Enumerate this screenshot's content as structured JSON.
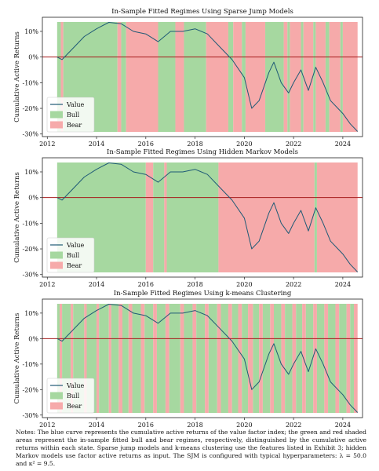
{
  "chart_data": [
    {
      "type": "line",
      "title": "In-Sample Fitted Regimes Using Sparse Jump Models",
      "ylabel": "Cumulative Active Returns",
      "xlim": [
        2011.8,
        2024.8
      ],
      "ylim": [
        -31,
        15.5
      ],
      "xticks": [
        2012,
        2014,
        2016,
        2018,
        2020,
        2022,
        2024
      ],
      "yticks": [
        10,
        0,
        -10,
        -20,
        -30
      ],
      "ytick_labels": [
        "10%",
        "0%",
        "-10%",
        "-20%",
        "-30%"
      ],
      "legend": {
        "position": "lower-left",
        "entries": [
          "Value",
          "Bull",
          "Bear"
        ]
      },
      "series": [
        {
          "name": "Value",
          "x": [
            2012.4,
            2012.6,
            2013.0,
            2013.5,
            2014.0,
            2014.5,
            2015.0,
            2015.5,
            2016.0,
            2016.5,
            2017.0,
            2017.5,
            2018.0,
            2018.5,
            2019.0,
            2019.5,
            2020.0,
            2020.3,
            2020.6,
            2021.0,
            2021.2,
            2021.5,
            2021.8,
            2022.0,
            2022.3,
            2022.6,
            2022.9,
            2023.2,
            2023.5,
            2023.8,
            2024.0,
            2024.3,
            2024.6
          ],
          "y": [
            0,
            -1,
            3,
            8,
            11,
            13.5,
            13,
            10,
            9,
            6,
            10,
            10,
            11,
            9,
            4,
            -1,
            -8,
            -20,
            -17,
            -6,
            -2,
            -10,
            -14,
            -10,
            -5,
            -13,
            -4,
            -10,
            -17,
            -20,
            -22,
            -26,
            -29
          ]
        }
      ],
      "regimes": [
        {
          "state": "Bull",
          "start": 2012.4,
          "end": 2012.55
        },
        {
          "state": "Bear",
          "start": 2012.55,
          "end": 2012.65
        },
        {
          "state": "Bull",
          "start": 2012.65,
          "end": 2014.85
        },
        {
          "state": "Bear",
          "start": 2014.85,
          "end": 2015.0
        },
        {
          "state": "Bull",
          "start": 2015.0,
          "end": 2015.2
        },
        {
          "state": "Bear",
          "start": 2015.2,
          "end": 2016.5
        },
        {
          "state": "Bull",
          "start": 2016.5,
          "end": 2017.2
        },
        {
          "state": "Bear",
          "start": 2017.2,
          "end": 2017.55
        },
        {
          "state": "Bull",
          "start": 2017.55,
          "end": 2018.45
        },
        {
          "state": "Bear",
          "start": 2018.45,
          "end": 2019.35
        },
        {
          "state": "Bull",
          "start": 2019.35,
          "end": 2019.55
        },
        {
          "state": "Bear",
          "start": 2019.55,
          "end": 2019.9
        },
        {
          "state": "Bull",
          "start": 2019.9,
          "end": 2020.05
        },
        {
          "state": "Bear",
          "start": 2020.05,
          "end": 2020.85
        },
        {
          "state": "Bull",
          "start": 2020.85,
          "end": 2021.6
        },
        {
          "state": "Bear",
          "start": 2021.6,
          "end": 2021.75
        },
        {
          "state": "Bull",
          "start": 2021.75,
          "end": 2021.85
        },
        {
          "state": "Bear",
          "start": 2021.85,
          "end": 2022.3
        },
        {
          "state": "Bull",
          "start": 2022.3,
          "end": 2022.4
        },
        {
          "state": "Bear",
          "start": 2022.4,
          "end": 2022.8
        },
        {
          "state": "Bull",
          "start": 2022.8,
          "end": 2022.9
        },
        {
          "state": "Bear",
          "start": 2022.9,
          "end": 2023.3
        },
        {
          "state": "Bull",
          "start": 2023.3,
          "end": 2023.45
        },
        {
          "state": "Bear",
          "start": 2023.45,
          "end": 2023.9
        },
        {
          "state": "Bull",
          "start": 2023.9,
          "end": 2024.0
        },
        {
          "state": "Bear",
          "start": 2024.0,
          "end": 2024.6
        }
      ]
    },
    {
      "type": "line",
      "title": "In-Sample Fitted Regimes Using Hidden Markov Models",
      "ylabel": "Cumulative Active Returns",
      "xlim": [
        2011.8,
        2024.8
      ],
      "ylim": [
        -31,
        15.5
      ],
      "xticks": [
        2012,
        2014,
        2016,
        2018,
        2020,
        2022,
        2024
      ],
      "yticks": [
        10,
        0,
        -10,
        -20,
        -30
      ],
      "ytick_labels": [
        "10%",
        "0%",
        "-10%",
        "-20%",
        "-30%"
      ],
      "legend": {
        "position": "lower-left",
        "entries": [
          "Value",
          "Bull",
          "Bear"
        ]
      },
      "series": [
        {
          "name": "Value",
          "x": [
            2012.4,
            2012.6,
            2013.0,
            2013.5,
            2014.0,
            2014.5,
            2015.0,
            2015.5,
            2016.0,
            2016.5,
            2017.0,
            2017.5,
            2018.0,
            2018.5,
            2019.0,
            2019.5,
            2020.0,
            2020.3,
            2020.6,
            2021.0,
            2021.2,
            2021.5,
            2021.8,
            2022.0,
            2022.3,
            2022.6,
            2022.9,
            2023.2,
            2023.5,
            2023.8,
            2024.0,
            2024.3,
            2024.6
          ],
          "y": [
            0,
            -1,
            3,
            8,
            11,
            13.5,
            13,
            10,
            9,
            6,
            10,
            10,
            11,
            9,
            4,
            -1,
            -8,
            -20,
            -17,
            -6,
            -2,
            -10,
            -14,
            -10,
            -5,
            -13,
            -4,
            -10,
            -17,
            -20,
            -22,
            -26,
            -29
          ]
        }
      ],
      "regimes": [
        {
          "state": "Bull",
          "start": 2012.4,
          "end": 2016.0
        },
        {
          "state": "Bear",
          "start": 2016.0,
          "end": 2016.3
        },
        {
          "state": "Bull",
          "start": 2016.3,
          "end": 2016.75
        },
        {
          "state": "Bear",
          "start": 2016.75,
          "end": 2016.85
        },
        {
          "state": "Bull",
          "start": 2016.85,
          "end": 2018.95
        },
        {
          "state": "Bear",
          "start": 2018.95,
          "end": 2022.85
        },
        {
          "state": "Bull",
          "start": 2022.85,
          "end": 2022.95
        },
        {
          "state": "Bear",
          "start": 2022.95,
          "end": 2024.6
        }
      ]
    },
    {
      "type": "line",
      "title": "In-Sample Fitted Regimes Using k-means Clustering",
      "ylabel": "Cumulative Active Returns",
      "xlim": [
        2011.8,
        2024.8
      ],
      "ylim": [
        -31,
        15.5
      ],
      "xticks": [
        2012,
        2014,
        2016,
        2018,
        2020,
        2022,
        2024
      ],
      "yticks": [
        10,
        0,
        -10,
        -20,
        -30
      ],
      "ytick_labels": [
        "10%",
        "0%",
        "-10%",
        "-20%",
        "-30%"
      ],
      "legend": {
        "position": "lower-left",
        "entries": [
          "Value",
          "Bull",
          "Bear"
        ]
      },
      "series": [
        {
          "name": "Value",
          "x": [
            2012.4,
            2012.6,
            2013.0,
            2013.5,
            2014.0,
            2014.5,
            2015.0,
            2015.5,
            2016.0,
            2016.5,
            2017.0,
            2017.5,
            2018.0,
            2018.5,
            2019.0,
            2019.5,
            2020.0,
            2020.3,
            2020.6,
            2021.0,
            2021.2,
            2021.5,
            2021.8,
            2022.0,
            2022.3,
            2022.6,
            2022.9,
            2023.2,
            2023.5,
            2023.8,
            2024.0,
            2024.3,
            2024.6
          ],
          "y": [
            0,
            -1,
            3,
            8,
            11,
            13.5,
            13,
            10,
            9,
            6,
            10,
            10,
            11,
            9,
            4,
            -1,
            -8,
            -20,
            -17,
            -6,
            -2,
            -10,
            -14,
            -10,
            -5,
            -13,
            -4,
            -10,
            -17,
            -20,
            -22,
            -26,
            -29
          ]
        }
      ],
      "regimes": [
        {
          "state": "Bull",
          "start": 2012.4,
          "end": 2012.5
        },
        {
          "state": "Bear",
          "start": 2012.5,
          "end": 2012.6
        },
        {
          "state": "Bull",
          "start": 2012.6,
          "end": 2012.95
        },
        {
          "state": "Bear",
          "start": 2012.95,
          "end": 2013.05
        },
        {
          "state": "Bull",
          "start": 2013.05,
          "end": 2013.5
        },
        {
          "state": "Bear",
          "start": 2013.5,
          "end": 2013.6
        },
        {
          "state": "Bull",
          "start": 2013.6,
          "end": 2014.0
        },
        {
          "state": "Bear",
          "start": 2014.0,
          "end": 2014.1
        },
        {
          "state": "Bull",
          "start": 2014.1,
          "end": 2014.5
        },
        {
          "state": "Bear",
          "start": 2014.5,
          "end": 2014.6
        },
        {
          "state": "Bull",
          "start": 2014.6,
          "end": 2014.9
        },
        {
          "state": "Bear",
          "start": 2014.9,
          "end": 2015.05
        },
        {
          "state": "Bull",
          "start": 2015.05,
          "end": 2015.3
        },
        {
          "state": "Bear",
          "start": 2015.3,
          "end": 2015.45
        },
        {
          "state": "Bull",
          "start": 2015.45,
          "end": 2015.8
        },
        {
          "state": "Bear",
          "start": 2015.8,
          "end": 2015.95
        },
        {
          "state": "Bull",
          "start": 2015.95,
          "end": 2016.3
        },
        {
          "state": "Bear",
          "start": 2016.3,
          "end": 2016.45
        },
        {
          "state": "Bull",
          "start": 2016.45,
          "end": 2016.8
        },
        {
          "state": "Bear",
          "start": 2016.8,
          "end": 2016.95
        },
        {
          "state": "Bull",
          "start": 2016.95,
          "end": 2017.4
        },
        {
          "state": "Bear",
          "start": 2017.4,
          "end": 2017.55
        },
        {
          "state": "Bull",
          "start": 2017.55,
          "end": 2017.9
        },
        {
          "state": "Bear",
          "start": 2017.9,
          "end": 2018.05
        },
        {
          "state": "Bull",
          "start": 2018.05,
          "end": 2018.4
        },
        {
          "state": "Bear",
          "start": 2018.4,
          "end": 2018.55
        },
        {
          "state": "Bull",
          "start": 2018.55,
          "end": 2018.9
        },
        {
          "state": "Bear",
          "start": 2018.9,
          "end": 2019.05
        },
        {
          "state": "Bull",
          "start": 2019.05,
          "end": 2019.35
        },
        {
          "state": "Bear",
          "start": 2019.35,
          "end": 2019.5
        },
        {
          "state": "Bull",
          "start": 2019.5,
          "end": 2019.75
        },
        {
          "state": "Bear",
          "start": 2019.75,
          "end": 2019.9
        },
        {
          "state": "Bull",
          "start": 2019.9,
          "end": 2020.15
        },
        {
          "state": "Bear",
          "start": 2020.15,
          "end": 2020.35
        },
        {
          "state": "Bull",
          "start": 2020.35,
          "end": 2020.6
        },
        {
          "state": "Bear",
          "start": 2020.6,
          "end": 2020.75
        },
        {
          "state": "Bull",
          "start": 2020.75,
          "end": 2021.05
        },
        {
          "state": "Bear",
          "start": 2021.05,
          "end": 2021.2
        },
        {
          "state": "Bull",
          "start": 2021.2,
          "end": 2021.5
        },
        {
          "state": "Bear",
          "start": 2021.5,
          "end": 2021.65
        },
        {
          "state": "Bull",
          "start": 2021.65,
          "end": 2021.95
        },
        {
          "state": "Bear",
          "start": 2021.95,
          "end": 2022.1
        },
        {
          "state": "Bull",
          "start": 2022.1,
          "end": 2022.35
        },
        {
          "state": "Bear",
          "start": 2022.35,
          "end": 2022.5
        },
        {
          "state": "Bull",
          "start": 2022.5,
          "end": 2022.8
        },
        {
          "state": "Bear",
          "start": 2022.8,
          "end": 2022.95
        },
        {
          "state": "Bull",
          "start": 2022.95,
          "end": 2023.25
        },
        {
          "state": "Bear",
          "start": 2023.25,
          "end": 2023.4
        },
        {
          "state": "Bull",
          "start": 2023.4,
          "end": 2023.7
        },
        {
          "state": "Bear",
          "start": 2023.7,
          "end": 2023.85
        },
        {
          "state": "Bull",
          "start": 2023.85,
          "end": 2024.15
        },
        {
          "state": "Bear",
          "start": 2024.15,
          "end": 2024.3
        },
        {
          "state": "Bull",
          "start": 2024.3,
          "end": 2024.45
        },
        {
          "state": "Bear",
          "start": 2024.45,
          "end": 2024.6
        }
      ]
    }
  ],
  "colors": {
    "bull": "#a6d8a0",
    "bear": "#f6aaaa",
    "value_line": "#1f5a76",
    "zero_line": "#a61c1c"
  },
  "notes": "Notes: The blue curve represents the cumulative active returns of the value factor index; the green and red shaded areas represent the in-sample fitted bull and bear regimes, respectively, distinguished by the cumulative active returns within each state. Sparse jump models and k-means clustering use the features listed in Exhibit 3; hidden Markov models use factor active returns as input. The SJM is configured with typical hyperparameters: λ = 50.0 and κ² = 9.5."
}
